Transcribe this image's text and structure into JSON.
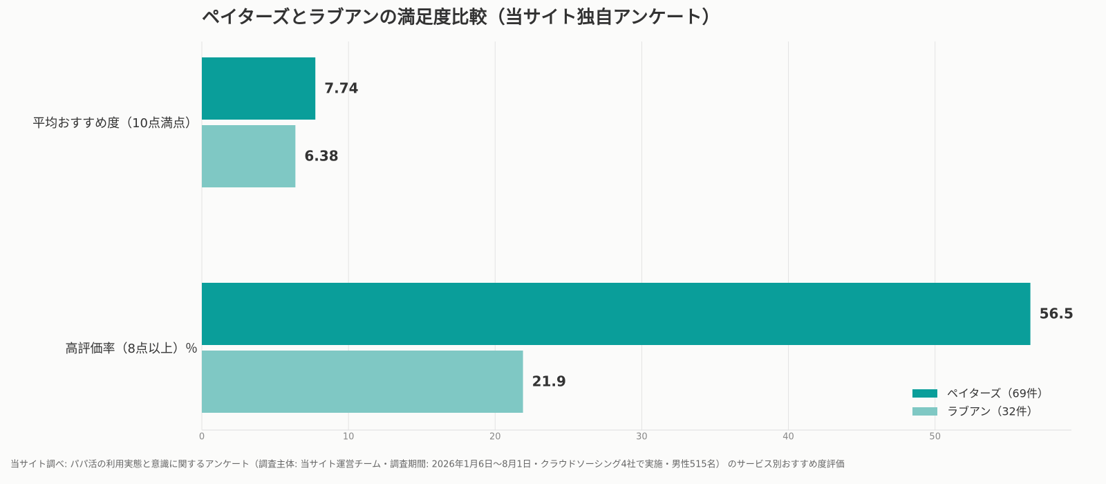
{
  "chart_data": {
    "type": "bar",
    "orientation": "horizontal",
    "title": "ペイターズとラブアンの満足度比較（当サイト独自アンケート）",
    "footnote": "当サイト調べ: パパ活の利用実態と意識に関するアンケート（調査主体: 当サイト運営チーム・調査期間: 2026年1月6日〜8月1日・クラウドソーシング4社で実施・男性515名） のサービス別おすすめ度評価",
    "categories": [
      "平均おすすめ度（10点満点）",
      "高評価率（8点以上）％"
    ],
    "series": [
      {
        "name": "ペイターズ（69件）",
        "color": "#0a9e9a",
        "values": [
          7.74,
          56.5
        ]
      },
      {
        "name": "ラブアン（32件）",
        "color": "#7fc8c4",
        "values": [
          6.38,
          21.9
        ]
      }
    ],
    "xlim": [
      0,
      59.3
    ],
    "xticks": [
      0,
      10,
      20,
      30,
      40,
      50
    ],
    "grid": true,
    "legend": "lower right"
  }
}
